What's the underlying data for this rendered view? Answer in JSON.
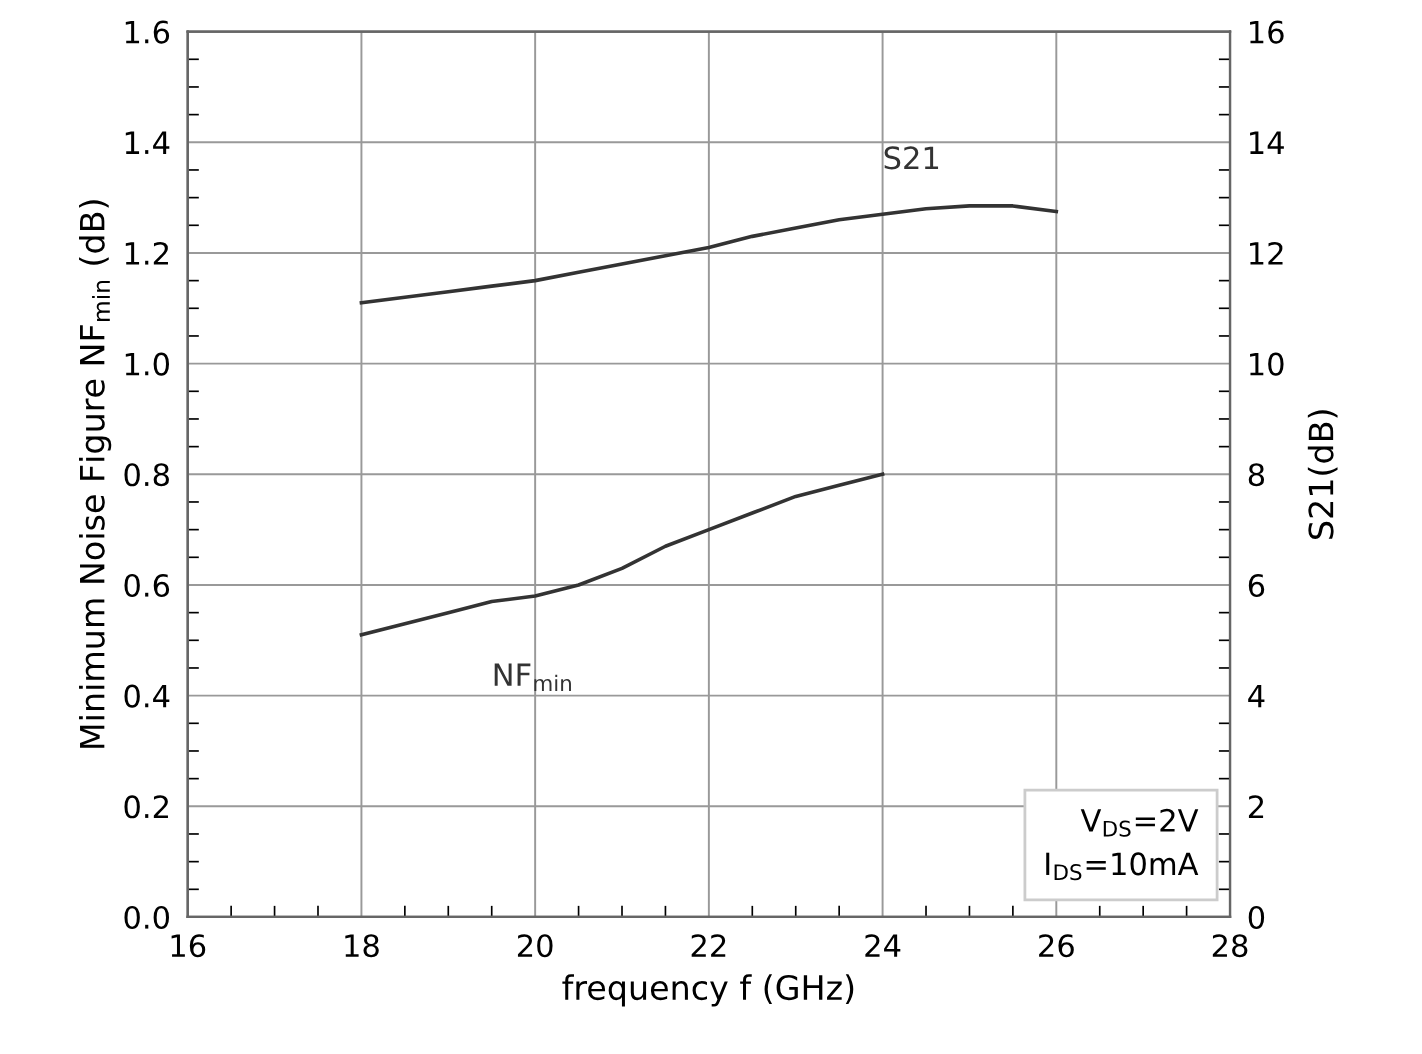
{
  "chart_data": {
    "type": "line",
    "xlabel": "frequency f (GHz)",
    "ylabel": "Minimum Noise Figure NF$_{min}$ (dB)",
    "y2label": "S21(dB)",
    "series": [
      {
        "name": "NF$_{min}$",
        "color": "#333333",
        "x": [
          18,
          18.5,
          19,
          19.5,
          20,
          20.5,
          21,
          21.5,
          22,
          22.5,
          23,
          23.5,
          24
        ],
        "values": [
          0.51,
          0.53,
          0.55,
          0.57,
          0.58,
          0.6,
          0.63,
          0.67,
          0.7,
          0.73,
          0.76,
          0.78,
          0.8
        ]
      },
      {
        "name": "S21",
        "color": "#333333",
        "axis": "y2",
        "x": [
          18,
          18.5,
          19,
          19.5,
          20,
          20.5,
          21,
          21.5,
          22,
          22.5,
          23,
          23.5,
          24,
          24.5,
          25,
          25.5,
          26
        ],
        "values": [
          11.1,
          11.2,
          11.3,
          11.4,
          11.5,
          11.65,
          11.8,
          11.95,
          12.1,
          12.3,
          12.45,
          12.6,
          12.7,
          12.8,
          12.85,
          12.85,
          12.75
        ]
      }
    ],
    "xlim": [
      16,
      28
    ],
    "xticks": [
      16,
      18,
      20,
      22,
      24,
      26,
      28
    ],
    "ylim": [
      0,
      1.6
    ],
    "yticks": [
      {
        "value": 0,
        "label": "0.0"
      },
      0.2,
      0.4,
      0.6,
      0.8,
      {
        "value": 1,
        "label": "1.0"
      },
      1.2,
      1.4,
      1.6
    ],
    "y2lim": [
      0,
      16
    ],
    "y2ticks": [
      0,
      2,
      4,
      6,
      8,
      10,
      12,
      14,
      16
    ],
    "grid": true,
    "legend": false,
    "marker": "none",
    "line_style": "solid",
    "annotations": [
      "V$_{DS}$=2V",
      "I$_{DS}$=10mA"
    ]
  }
}
